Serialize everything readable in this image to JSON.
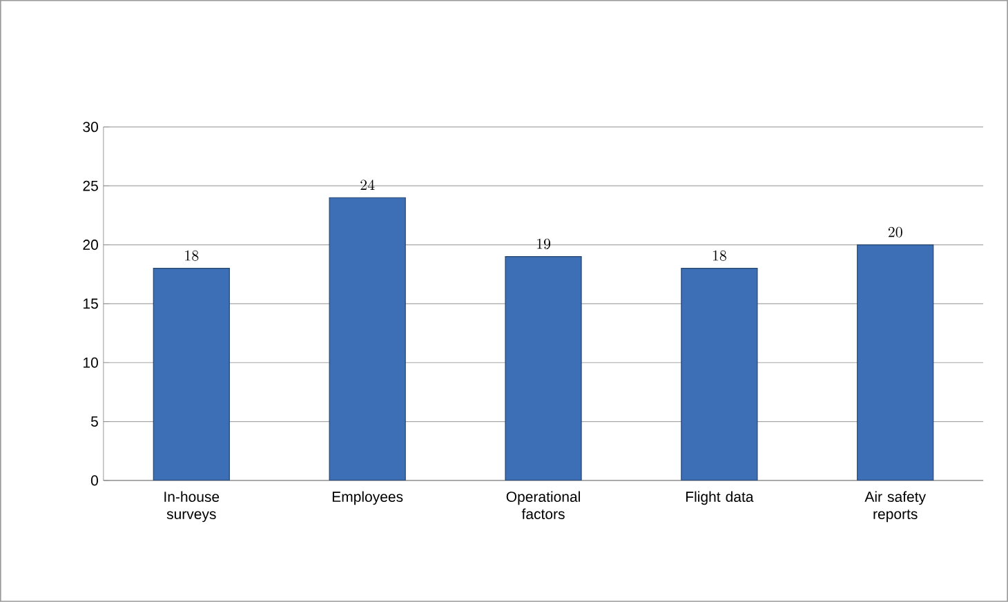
{
  "chart_data": {
    "type": "bar",
    "categories": [
      "In-house surveys",
      "Employees",
      "Operational factors",
      "Flight data",
      "Air safety reports"
    ],
    "values": [
      18,
      24,
      19,
      18,
      20
    ],
    "color": "#3d6fb6",
    "ylim": [
      0,
      30
    ],
    "yticks": [
      0,
      5,
      10,
      15,
      20,
      25,
      30
    ],
    "grid": "y",
    "data_labels": true
  }
}
